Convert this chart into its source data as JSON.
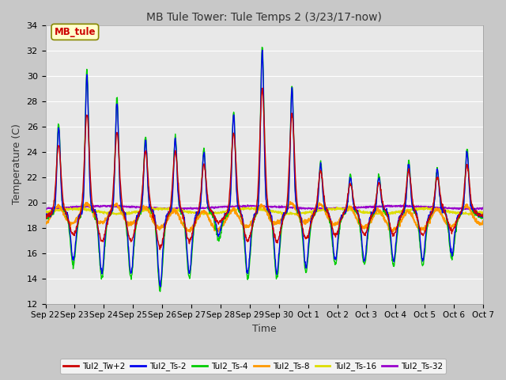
{
  "title": "MB Tule Tower: Tule Temps 2 (3/23/17-now)",
  "xlabel": "Time",
  "ylabel": "Temperature (C)",
  "ylim": [
    12,
    34
  ],
  "yticks": [
    12,
    14,
    16,
    18,
    20,
    22,
    24,
    26,
    28,
    30,
    32,
    34
  ],
  "x_labels": [
    "Sep 22",
    "Sep 23",
    "Sep 24",
    "Sep 25",
    "Sep 26",
    "Sep 27",
    "Sep 28",
    "Sep 29",
    "Sep 30",
    "Oct 1",
    "Oct 2",
    "Oct 3",
    "Oct 4",
    "Oct 5",
    "Oct 6",
    "Oct 7"
  ],
  "fig_facecolor": "#c8c8c8",
  "ax_facecolor": "#e8e8e8",
  "grid_color": "#ffffff",
  "series_colors": {
    "Tul2_Tw+2": "#cc0000",
    "Tul2_Ts-2": "#0000ee",
    "Tul2_Ts-4": "#00cc00",
    "Tul2_Ts-8": "#ff9900",
    "Tul2_Ts-16": "#dddd00",
    "Tul2_Ts-32": "#9900cc"
  },
  "legend_label": "MB_tule",
  "legend_facecolor": "#ffffcc",
  "legend_edgecolor": "#888800",
  "legend_textcolor": "#cc0000"
}
